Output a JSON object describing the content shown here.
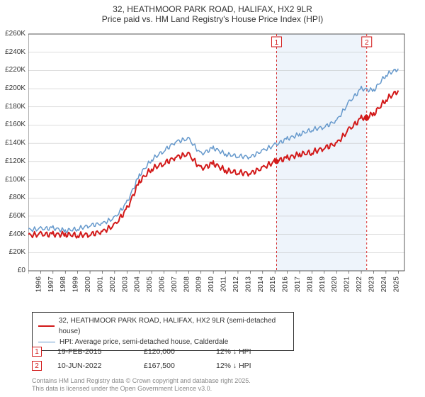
{
  "title_line1": "32, HEATHMOOR PARK ROAD, HALIFAX, HX2 9LR",
  "title_line2": "Price paid vs. HM Land Registry's House Price Index (HPI)",
  "title_fontsize": 12,
  "chart": {
    "type": "line",
    "background_color": "#ffffff",
    "grid_color": "#bbbbbb",
    "axis_color": "#333333",
    "tick_font_size": 10,
    "xlim": [
      1995,
      2025.5
    ],
    "xtick_step": 1,
    "ylim": [
      0,
      260000
    ],
    "ytick_step": 20000,
    "y_prefix": "£",
    "y_suffix": "K",
    "highlight_band": {
      "xstart": 2015.1,
      "xend": 2022.4,
      "color": "#eef4fb"
    },
    "series": [
      {
        "name": "price_paid",
        "label": "32, HEATHMOOR PARK ROAD, HALIFAX, HX2 9LR (semi-detached house)",
        "color": "#d21919",
        "line_width": 2,
        "points": [
          [
            1995,
            39000
          ],
          [
            1996,
            40000
          ],
          [
            1997,
            40000
          ],
          [
            1998,
            40000
          ],
          [
            1999,
            39000
          ],
          [
            2000,
            40000
          ],
          [
            2001,
            43000
          ],
          [
            2002,
            50000
          ],
          [
            2003,
            68000
          ],
          [
            2004,
            98000
          ],
          [
            2005,
            112000
          ],
          [
            2006,
            118000
          ],
          [
            2007,
            125000
          ],
          [
            2008,
            128000
          ],
          [
            2009,
            112000
          ],
          [
            2010,
            118000
          ],
          [
            2011,
            110000
          ],
          [
            2012,
            108000
          ],
          [
            2013,
            107000
          ],
          [
            2014,
            113000
          ],
          [
            2015,
            120000
          ],
          [
            2016,
            124000
          ],
          [
            2017,
            128000
          ],
          [
            2018,
            130000
          ],
          [
            2019,
            135000
          ],
          [
            2020,
            140000
          ],
          [
            2021,
            155000
          ],
          [
            2022,
            167500
          ],
          [
            2023,
            172000
          ],
          [
            2024,
            188000
          ],
          [
            2025,
            198000
          ]
        ]
      },
      {
        "name": "hpi",
        "label": "HPI: Average price, semi-detached house, Calderdale",
        "color": "#6699cc",
        "line_width": 1.5,
        "points": [
          [
            1995,
            45000
          ],
          [
            1996,
            46000
          ],
          [
            1997,
            47000
          ],
          [
            1998,
            44000
          ],
          [
            1999,
            46000
          ],
          [
            2000,
            50000
          ],
          [
            2001,
            52000
          ],
          [
            2002,
            58000
          ],
          [
            2003,
            75000
          ],
          [
            2004,
            105000
          ],
          [
            2005,
            122000
          ],
          [
            2006,
            132000
          ],
          [
            2007,
            142000
          ],
          [
            2008,
            145000
          ],
          [
            2009,
            128000
          ],
          [
            2010,
            135000
          ],
          [
            2011,
            128000
          ],
          [
            2012,
            126000
          ],
          [
            2013,
            125000
          ],
          [
            2014,
            132000
          ],
          [
            2015,
            138000
          ],
          [
            2016,
            145000
          ],
          [
            2017,
            150000
          ],
          [
            2018,
            155000
          ],
          [
            2019,
            158000
          ],
          [
            2020,
            165000
          ],
          [
            2021,
            185000
          ],
          [
            2022,
            200000
          ],
          [
            2023,
            198000
          ],
          [
            2024,
            215000
          ],
          [
            2025,
            222000
          ]
        ]
      }
    ],
    "sale_markers": [
      {
        "n": "1",
        "x": 2015.13,
        "y": 120000
      },
      {
        "n": "2",
        "x": 2022.44,
        "y": 167500
      }
    ],
    "marker_line_color": "#d21919",
    "marker_line_dash": "3,3",
    "marker_box_border": "#d21919",
    "marker_box_fill": "#ffffff"
  },
  "legend": {
    "items": [
      {
        "color": "#d21919",
        "width": 2,
        "label": "32, HEATHMOOR PARK ROAD, HALIFAX, HX2 9LR (semi-detached house)"
      },
      {
        "color": "#6699cc",
        "width": 1.5,
        "label": "HPI: Average price, semi-detached house, Calderdale"
      }
    ]
  },
  "sales_table": {
    "rows": [
      {
        "marker": "1",
        "date": "19-FEB-2015",
        "price": "£120,000",
        "hpi_delta": "12% ↓ HPI"
      },
      {
        "marker": "2",
        "date": "10-JUN-2022",
        "price": "£167,500",
        "hpi_delta": "12% ↓ HPI"
      }
    ]
  },
  "footnote_line1": "Contains HM Land Registry data © Crown copyright and database right 2025.",
  "footnote_line2": "This data is licensed under the Open Government Licence v3.0."
}
